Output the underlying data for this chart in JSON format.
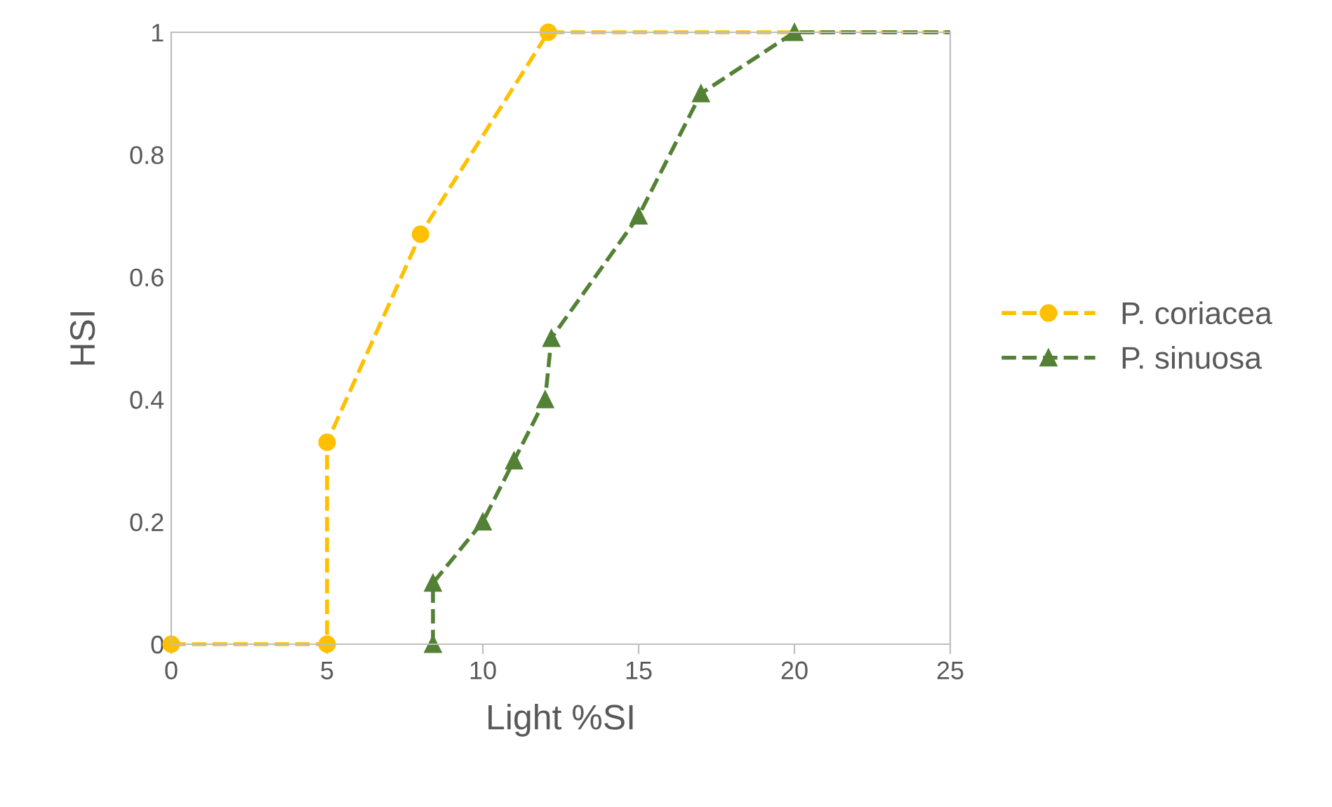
{
  "chart_data": {
    "type": "line",
    "xlabel": "Light %SI",
    "ylabel": "HSI",
    "xlim": [
      0,
      25
    ],
    "xticks": [
      0,
      5,
      10,
      15,
      20,
      25
    ],
    "ylim": [
      0,
      1
    ],
    "yticks": [
      0,
      0.2,
      0.4,
      0.6,
      0.8,
      1
    ],
    "grid": false,
    "legend": "right",
    "line_style": "dashed",
    "series": [
      {
        "name": "P. coriacea",
        "color": "#ffc000",
        "marker": "circle",
        "x": [
          0,
          5,
          5,
          8,
          12.1,
          25
        ],
        "values": [
          0,
          0,
          0.33,
          0.67,
          1,
          1
        ]
      },
      {
        "name": "P. sinuosa",
        "color": "#538135",
        "marker": "triangle",
        "x": [
          8.4,
          8.4,
          10,
          11,
          12,
          12.2,
          15,
          17,
          20,
          25
        ],
        "values": [
          0,
          0.1,
          0.2,
          0.3,
          0.4,
          0.5,
          0.7,
          0.9,
          1,
          1
        ]
      }
    ]
  }
}
